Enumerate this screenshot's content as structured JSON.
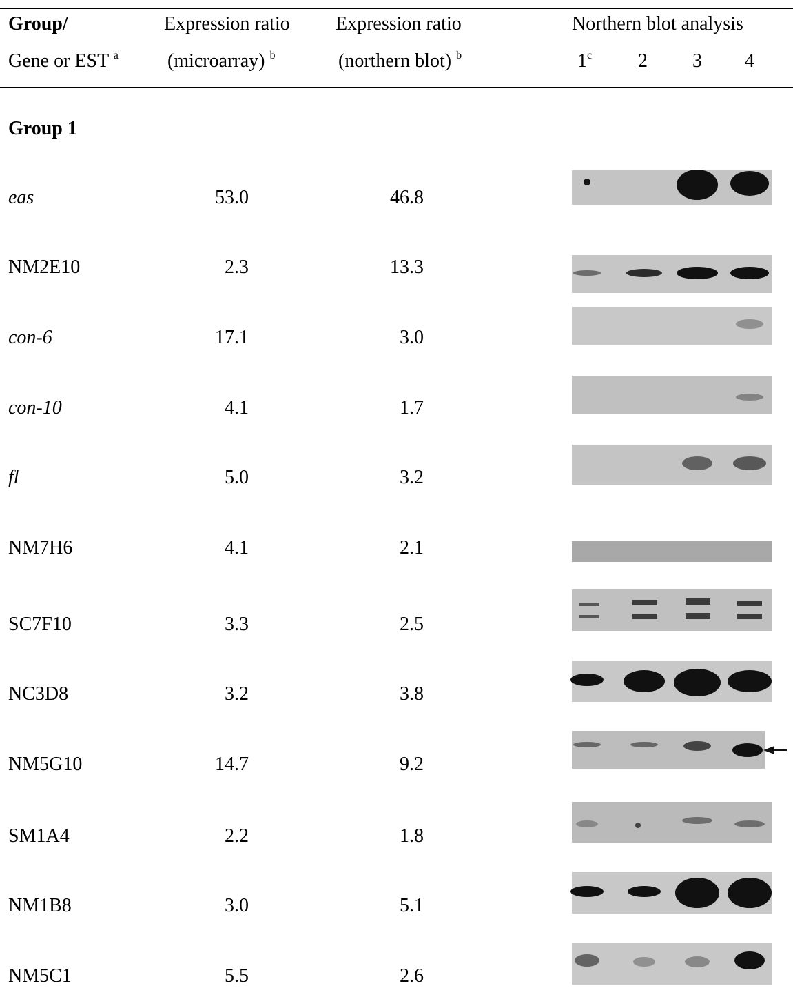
{
  "header": {
    "row1": [
      "Group/",
      "Expression ratio",
      "Expression ratio",
      "Northern blot analysis"
    ],
    "row2": {
      "gene": "Gene or EST",
      "gene_note": "a",
      "microarray": "(microarray)",
      "microarray_note": "b",
      "northern": "(northern blot)",
      "northern_note": "b",
      "lanes": [
        "1",
        "2",
        "3",
        "4"
      ],
      "lane1_note": "c"
    }
  },
  "group": "Group 1",
  "rows": [
    {
      "gene": "eas",
      "microarray": "53.0",
      "northern": "46.8"
    },
    {
      "gene": "NM2E10",
      "microarray": "2.3",
      "northern": "13.3"
    },
    {
      "gene": "con-6",
      "microarray": "17.1",
      "northern": "3.0"
    },
    {
      "gene": "con-10",
      "microarray": "4.1",
      "northern": "1.7"
    },
    {
      "gene": "fl",
      "microarray": "5.0",
      "northern": "3.2"
    },
    {
      "gene": "NM7H6",
      "microarray": "4.1",
      "northern": "2.1"
    },
    {
      "gene": "SC7F10",
      "microarray": "3.3",
      "northern": "2.5"
    },
    {
      "gene": "NC3D8",
      "microarray": "3.2",
      "northern": "3.8"
    },
    {
      "gene": "NM5G10",
      "microarray": "14.7",
      "northern": "9.2"
    },
    {
      "gene": "SM1A4",
      "microarray": "2.2",
      "northern": "1.8"
    },
    {
      "gene": "NM1B8",
      "microarray": "3.0",
      "northern": "5.1"
    },
    {
      "gene": "NM5C1",
      "microarray": "5.5",
      "northern": "2.6"
    }
  ]
}
